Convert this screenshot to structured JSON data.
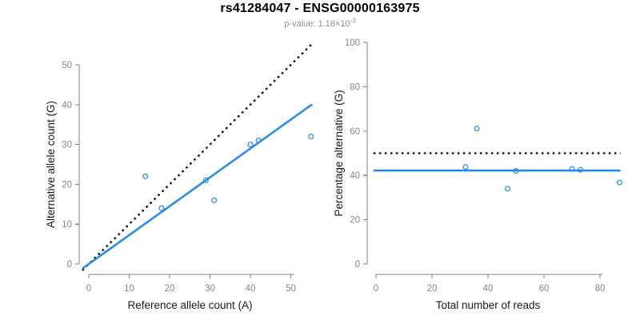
{
  "header": {
    "title": "rs41284047 - ENSG00000163975",
    "pvalue_prefix": "p-value: ",
    "pvalue_mantissa": "1.16×10",
    "pvalue_exponent": "-3"
  },
  "colors": {
    "accent_blue": "#2288EE",
    "dashed_black": "#000000",
    "axis_gray": "#828282",
    "tick_label_gray": "#858585",
    "axis_title_color": "#1a1a1a",
    "subtitle_gray": "#8e8e8e"
  },
  "chart_data": [
    {
      "type": "scatter",
      "panel": "left",
      "xlabel": "Reference allele count (A)",
      "ylabel": "Alternative allele count (G)",
      "xticks": [
        0,
        10,
        20,
        30,
        40,
        50
      ],
      "yticks": [
        0,
        10,
        20,
        30,
        40,
        50
      ],
      "xlim": [
        -1.6,
        55.6
      ],
      "ylim": [
        -1.6,
        55.6
      ],
      "grid": false,
      "points": [
        {
          "x": 14,
          "y": 22
        },
        {
          "x": 18,
          "y": 14
        },
        {
          "x": 29,
          "y": 21
        },
        {
          "x": 31,
          "y": 16
        },
        {
          "x": 40,
          "y": 30
        },
        {
          "x": 42,
          "y": 31
        },
        {
          "x": 55,
          "y": 32
        }
      ],
      "lines": [
        {
          "name": "identity-line",
          "style": "dotted",
          "color_key": "dashed_black",
          "slope": 1,
          "intercept": 0,
          "x_from": -1.6,
          "x_to": 55.6
        },
        {
          "name": "fit-line",
          "style": "solid",
          "color_key": "accent_blue",
          "slope": 0.725,
          "intercept": 0,
          "x_from": -1.6,
          "x_to": 55.3
        }
      ]
    },
    {
      "type": "scatter",
      "panel": "right",
      "xlabel": "Total number of reads",
      "ylabel": "Percentage alternative (G)",
      "xticks": [
        0,
        20,
        40,
        60,
        80
      ],
      "yticks": [
        0,
        20,
        40,
        60,
        80,
        100
      ],
      "xlim": [
        -0.9,
        87.3
      ],
      "ylim": [
        0,
        100
      ],
      "grid": false,
      "points": [
        {
          "x": 36,
          "y": 61.1
        },
        {
          "x": 32,
          "y": 43.8
        },
        {
          "x": 50,
          "y": 42.0
        },
        {
          "x": 47,
          "y": 34.0
        },
        {
          "x": 70,
          "y": 42.9
        },
        {
          "x": 73,
          "y": 42.5
        },
        {
          "x": 87,
          "y": 36.8
        }
      ],
      "lines": [
        {
          "name": "expected-50pct-line",
          "style": "dotted",
          "color_key": "dashed_black",
          "hline": 50,
          "x_from": -0.9,
          "x_to": 87.3
        },
        {
          "name": "mean-pct-line",
          "style": "solid",
          "color_key": "accent_blue",
          "hline": 42.2,
          "x_from": -0.9,
          "x_to": 87.3
        }
      ]
    }
  ]
}
